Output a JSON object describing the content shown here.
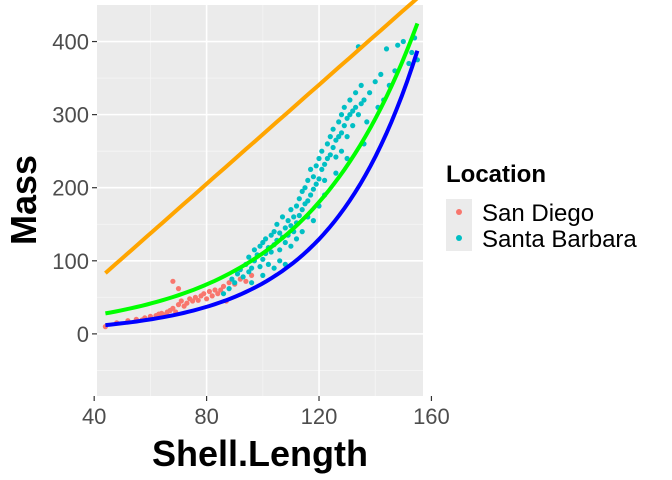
{
  "chart_data": {
    "type": "scatter",
    "xlabel": "Shell.Length",
    "ylabel": "Mass",
    "xlim": [
      41,
      157
    ],
    "ylim": [
      -85,
      450
    ],
    "x_ticks": [
      40,
      80,
      120,
      160
    ],
    "y_ticks": [
      0,
      100,
      200,
      300,
      400
    ],
    "x_tick_labels": [
      "40",
      "80",
      "120",
      "160"
    ],
    "y_tick_labels": [
      "0",
      "100",
      "200",
      "300",
      "400"
    ],
    "grid": true,
    "legend": {
      "title": "Location",
      "placement": "right",
      "entries": [
        {
          "label": "San Diego",
          "color": "#f8766d"
        },
        {
          "label": "Santa Barbara",
          "color": "#00bfc4"
        }
      ]
    },
    "series": [
      {
        "name": "San Diego",
        "color": "#f8766d",
        "points": [
          [
            44,
            10
          ],
          [
            48,
            15
          ],
          [
            52,
            18
          ],
          [
            55,
            20
          ],
          [
            57,
            19
          ],
          [
            58,
            22
          ],
          [
            60,
            24
          ],
          [
            62,
            25
          ],
          [
            63,
            27
          ],
          [
            64,
            28
          ],
          [
            65,
            26
          ],
          [
            66,
            30
          ],
          [
            67,
            32
          ],
          [
            68,
            35
          ],
          [
            68,
            72
          ],
          [
            69,
            30
          ],
          [
            70,
            40
          ],
          [
            70,
            62
          ],
          [
            71,
            45
          ],
          [
            72,
            38
          ],
          [
            73,
            42
          ],
          [
            74,
            48
          ],
          [
            75,
            45
          ],
          [
            76,
            50
          ],
          [
            77,
            46
          ],
          [
            78,
            52
          ],
          [
            79,
            55
          ],
          [
            80,
            48
          ],
          [
            81,
            58
          ],
          [
            82,
            52
          ],
          [
            83,
            60
          ],
          [
            84,
            55
          ],
          [
            85,
            60
          ],
          [
            86,
            65
          ],
          [
            87,
            45
          ],
          [
            88,
            70
          ],
          [
            90,
            68
          ],
          [
            92,
            75
          ],
          [
            94,
            72
          ],
          [
            96,
            80
          ]
        ]
      },
      {
        "name": "Santa Barbara",
        "color": "#00bfc4",
        "points": [
          [
            86,
            55
          ],
          [
            88,
            62
          ],
          [
            89,
            75
          ],
          [
            90,
            70
          ],
          [
            91,
            82
          ],
          [
            92,
            88
          ],
          [
            93,
            78
          ],
          [
            94,
            95
          ],
          [
            95,
            105
          ],
          [
            95,
            85
          ],
          [
            96,
            90
          ],
          [
            97,
            100
          ],
          [
            97,
            115
          ],
          [
            98,
            108
          ],
          [
            99,
            120
          ],
          [
            99,
            92
          ],
          [
            100,
            125
          ],
          [
            100,
            102
          ],
          [
            101,
            130
          ],
          [
            101,
            110
          ],
          [
            102,
            118
          ],
          [
            102,
            95
          ],
          [
            103,
            135
          ],
          [
            103,
            112
          ],
          [
            104,
            140
          ],
          [
            104,
            122
          ],
          [
            105,
            150
          ],
          [
            105,
            128
          ],
          [
            106,
            138
          ],
          [
            106,
            115
          ],
          [
            107,
            160
          ],
          [
            107,
            132
          ],
          [
            108,
            145
          ],
          [
            108,
            125
          ],
          [
            109,
            155
          ],
          [
            109,
            135
          ],
          [
            110,
            170
          ],
          [
            110,
            148
          ],
          [
            111,
            160
          ],
          [
            111,
            140
          ],
          [
            112,
            175
          ],
          [
            112,
            152
          ],
          [
            113,
            185
          ],
          [
            113,
            162
          ],
          [
            114,
            195
          ],
          [
            114,
            170
          ],
          [
            115,
            200
          ],
          [
            115,
            178
          ],
          [
            116,
            210
          ],
          [
            116,
            182
          ],
          [
            117,
            190
          ],
          [
            117,
            225
          ],
          [
            118,
            215
          ],
          [
            118,
            198
          ],
          [
            119,
            230
          ],
          [
            119,
            205
          ],
          [
            120,
            240
          ],
          [
            120,
            212
          ],
          [
            121,
            250
          ],
          [
            121,
            225
          ],
          [
            122,
            232
          ],
          [
            122,
            210
          ],
          [
            123,
            260
          ],
          [
            123,
            240
          ],
          [
            124,
            270
          ],
          [
            124,
            245
          ],
          [
            125,
            280
          ],
          [
            125,
            255
          ],
          [
            126,
            265
          ],
          [
            126,
            242
          ],
          [
            127,
            290
          ],
          [
            127,
            270
          ],
          [
            128,
            300
          ],
          [
            128,
            275
          ],
          [
            129,
            310
          ],
          [
            129,
            285
          ],
          [
            130,
            295
          ],
          [
            130,
            270
          ],
          [
            131,
            320
          ],
          [
            131,
            300
          ],
          [
            132,
            305
          ],
          [
            132,
            285
          ],
          [
            133,
            330
          ],
          [
            133,
            310
          ],
          [
            134,
            300
          ],
          [
            135,
            340
          ],
          [
            135,
            315
          ],
          [
            136,
            320
          ],
          [
            137,
            290
          ],
          [
            138,
            330
          ],
          [
            140,
            345
          ],
          [
            141,
            310
          ],
          [
            142,
            355
          ],
          [
            143,
            320
          ],
          [
            144,
            390
          ],
          [
            145,
            340
          ],
          [
            147,
            360
          ],
          [
            148,
            395
          ],
          [
            150,
            400
          ],
          [
            152,
            370
          ],
          [
            153,
            385
          ],
          [
            154,
            405
          ],
          [
            155,
            375
          ],
          [
            134,
            393
          ],
          [
            118,
            155
          ],
          [
            108,
            95
          ],
          [
            112,
            130
          ],
          [
            100,
            80
          ],
          [
            104,
            90
          ],
          [
            96,
            70
          ],
          [
            110,
            120
          ],
          [
            106,
            100
          ],
          [
            114,
            140
          ],
          [
            126,
            220
          ],
          [
            130,
            240
          ],
          [
            122,
            190
          ],
          [
            128,
            250
          ],
          [
            116,
            160
          ],
          [
            136,
            260
          ],
          [
            120,
            175
          ]
        ]
      }
    ],
    "trend_lines": [
      {
        "color": "#ffa500",
        "x_range": [
          44,
          155
        ],
        "kind": "linear",
        "coef": [
          -66,
          3.39
        ]
      },
      {
        "color": "#0000ff",
        "x_range": [
          44,
          155
        ],
        "kind": "exponential",
        "coef": [
          12,
          0.0313
        ]
      },
      {
        "color": "#00ff00",
        "x_range": [
          44,
          155
        ],
        "kind": "exponential",
        "coef": [
          28,
          0.0245
        ]
      }
    ]
  }
}
